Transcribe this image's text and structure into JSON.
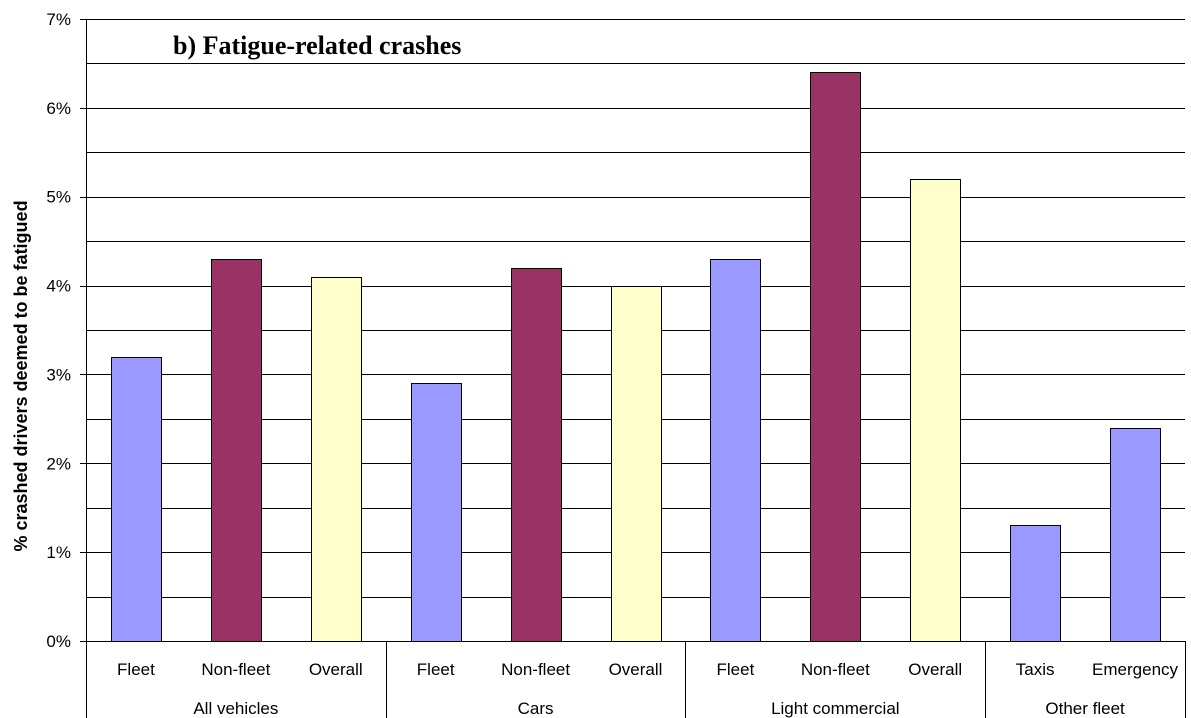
{
  "chart_data": {
    "type": "bar",
    "title": "b) Fatigue-related  crashes",
    "ylabel": "% crashed drivers deemed to be fatigued",
    "xlabel": "",
    "ylim": [
      0,
      7
    ],
    "y_ticks": [
      "0%",
      "1%",
      "2%",
      "3%",
      "4%",
      "5%",
      "6%",
      "7%"
    ],
    "grid": "horizontal",
    "categories": [
      "Fleet",
      "Non-fleet",
      "Overall",
      "Fleet",
      "Non-fleet",
      "Overall",
      "Fleet",
      "Non-fleet",
      "Overall",
      "Taxis",
      "Emergency"
    ],
    "values": [
      3.2,
      4.3,
      4.1,
      2.9,
      4.2,
      4.0,
      4.3,
      6.4,
      5.2,
      1.3,
      2.4
    ],
    "groups": [
      {
        "label": "All vehicles",
        "count": 3
      },
      {
        "label": "Cars",
        "count": 3
      },
      {
        "label": "Light commercial",
        "count": 3
      },
      {
        "label": "Other fleet",
        "count": 2
      }
    ],
    "bar_kinds": [
      "fleet",
      "nonfleet",
      "overall",
      "fleet",
      "nonfleet",
      "overall",
      "fleet",
      "nonfleet",
      "overall",
      "fleet",
      "fleet"
    ],
    "colors": {
      "fleet": "#9999ff",
      "nonfleet": "#993366",
      "overall": "#ffffcc",
      "grid": "#000000"
    }
  }
}
